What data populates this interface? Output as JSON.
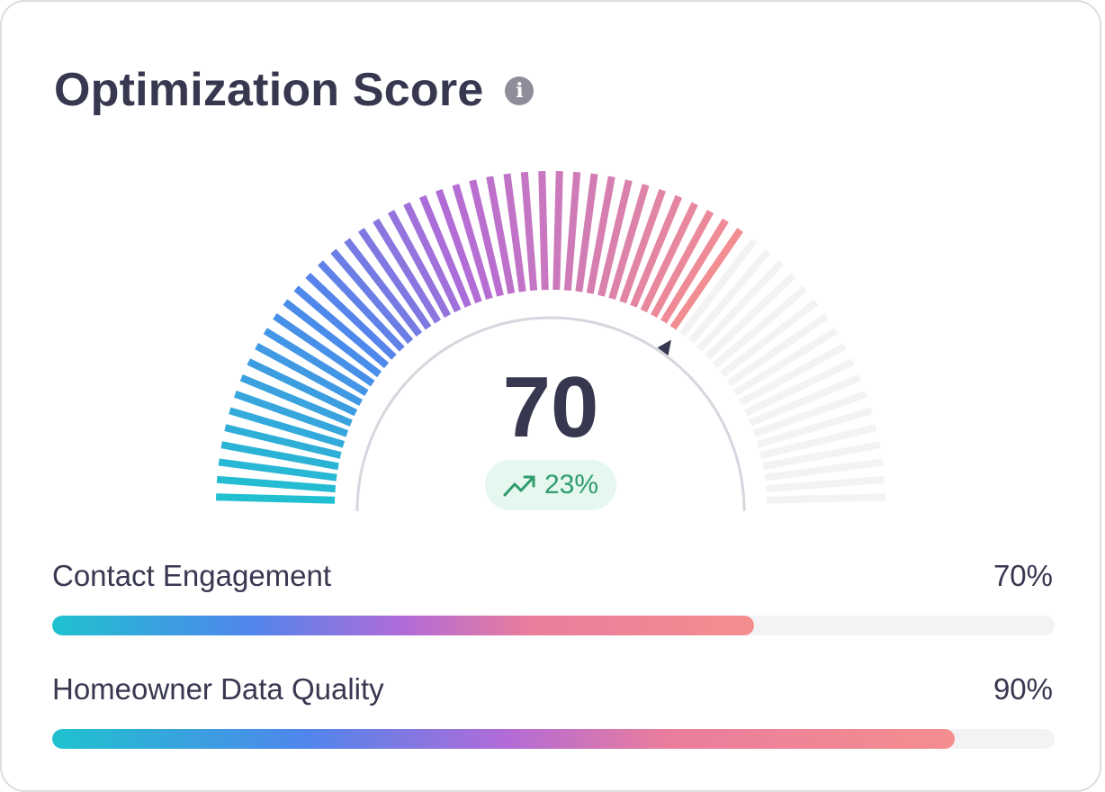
{
  "card": {
    "title": "Optimization Score",
    "info_icon": "info-icon"
  },
  "gauge": {
    "score": "70",
    "score_value": 70,
    "max": 100,
    "delta": "23%",
    "delta_icon": "trend-up-icon",
    "colors": {
      "start": "#1fc2cf",
      "blue": "#4f86ec",
      "purple": "#b16bd8",
      "end": "#f48e90",
      "inactive": "#f3f3f6",
      "indicator": "#373750"
    }
  },
  "metrics": [
    {
      "label": "Contact Engagement",
      "value": "70%",
      "fraction": 0.7
    },
    {
      "label": "Homeowner Data Quality",
      "value": "90%",
      "fraction": 0.9
    }
  ],
  "colors": {
    "text": "#373750",
    "badge_bg": "#e5f7ef",
    "badge_text": "#2f9c6b",
    "card_border": "#dcdde3"
  }
}
